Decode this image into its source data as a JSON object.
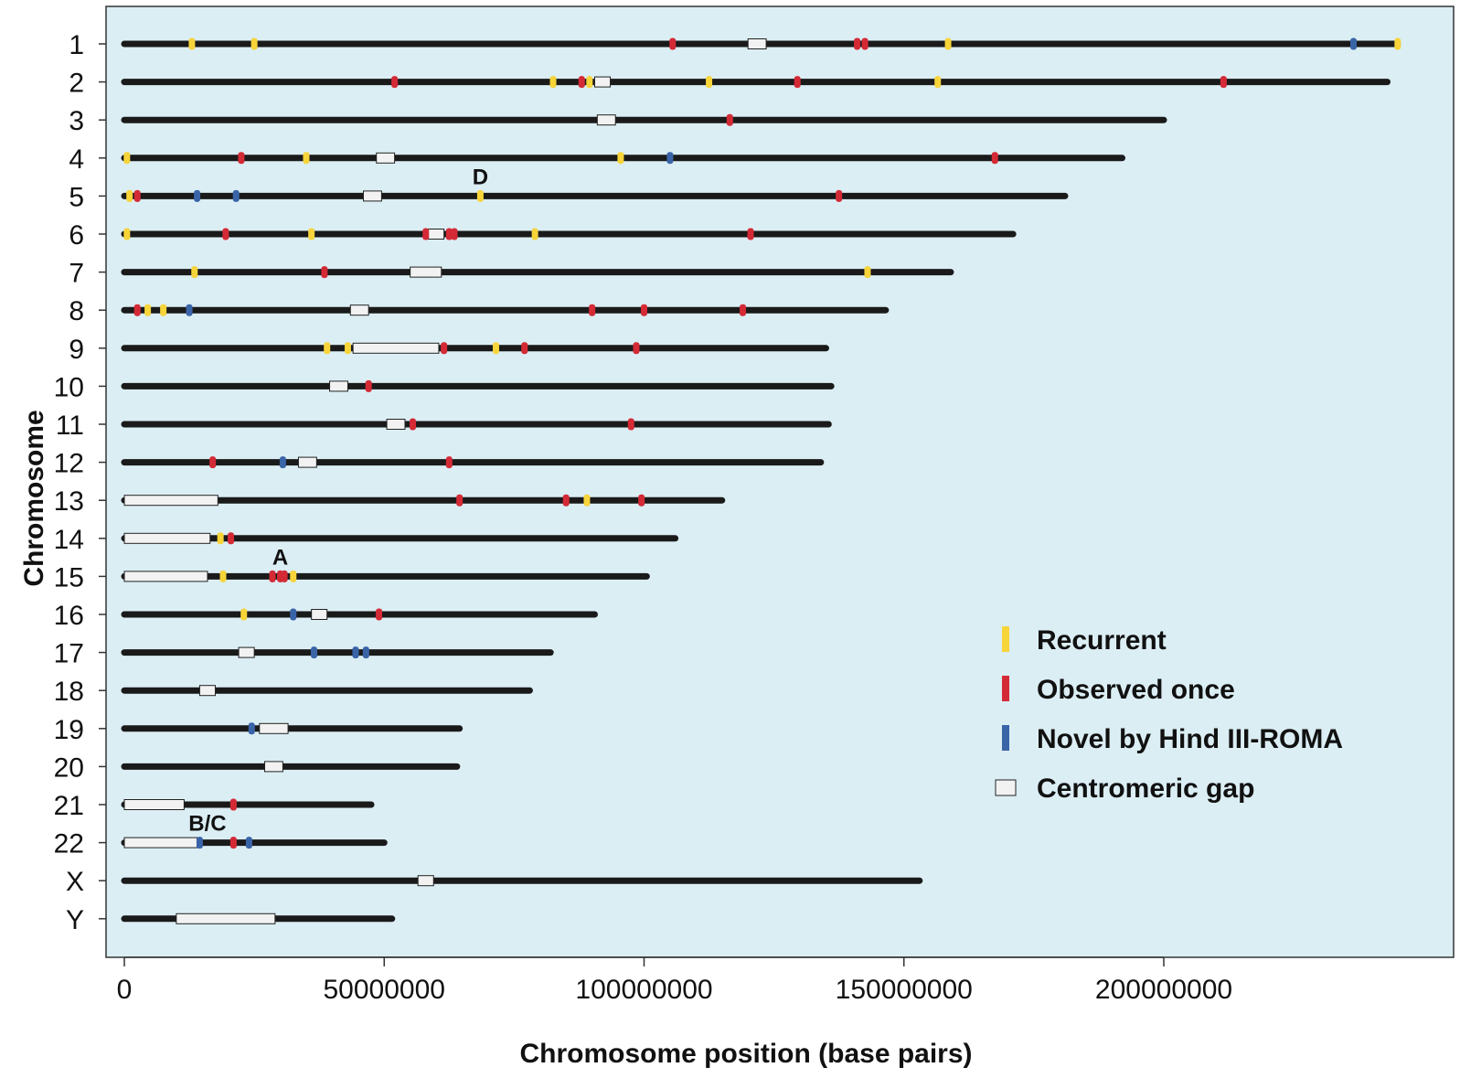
{
  "chart_data": {
    "type": "chromosome_map",
    "xlabel": "Chromosome position (base pairs)",
    "ylabel": "Chromosome",
    "xlim": [
      -3000000,
      249000000
    ],
    "xticks": [
      0,
      50000000,
      100000000,
      150000000,
      200000000
    ],
    "xtick_labels": [
      "0",
      "50000000",
      "100000000",
      "150000000",
      "200000000"
    ],
    "grid": false,
    "legend_position": "right",
    "colors": {
      "background": "#dbeef4",
      "chromosome": "#1a1a1a",
      "Recurrent": "#f7d43a",
      "Observed once": "#d42a36",
      "Novel by Hind III-ROMA": "#3a64a8",
      "centromere_fill": "#f2f2f2"
    },
    "legend": [
      {
        "label": "Recurrent",
        "kind": "mark"
      },
      {
        "label": "Observed once",
        "kind": "mark"
      },
      {
        "label": "Novel by Hind III-ROMA",
        "kind": "mark"
      },
      {
        "label": "Centromeric gap",
        "kind": "gap"
      }
    ],
    "chromosomes": [
      {
        "name": "1",
        "length": 245000000,
        "gap": [
          120000000,
          123500000
        ],
        "marks": [
          [
            13000000,
            "Recurrent"
          ],
          [
            25000000,
            "Recurrent"
          ],
          [
            105500000,
            "Observed once"
          ],
          [
            141000000,
            "Observed once"
          ],
          [
            142500000,
            "Observed once"
          ],
          [
            158500000,
            "Recurrent"
          ],
          [
            236500000,
            "Novel by Hind III-ROMA"
          ],
          [
            245000000,
            "Recurrent"
          ]
        ]
      },
      {
        "name": "2",
        "length": 243000000,
        "gap": [
          90500000,
          93500000
        ],
        "marks": [
          [
            52000000,
            "Observed once"
          ],
          [
            82500000,
            "Recurrent"
          ],
          [
            88000000,
            "Observed once"
          ],
          [
            89500000,
            "Recurrent"
          ],
          [
            112500000,
            "Recurrent"
          ],
          [
            129500000,
            "Observed once"
          ],
          [
            156500000,
            "Recurrent"
          ],
          [
            211500000,
            "Observed once"
          ]
        ]
      },
      {
        "name": "3",
        "length": 200000000,
        "gap": [
          91000000,
          94500000
        ],
        "marks": [
          [
            116500000,
            "Observed once"
          ]
        ]
      },
      {
        "name": "4",
        "length": 192000000,
        "gap": [
          48500000,
          52000000
        ],
        "marks": [
          [
            500000,
            "Recurrent"
          ],
          [
            22500000,
            "Observed once"
          ],
          [
            35000000,
            "Recurrent"
          ],
          [
            95500000,
            "Recurrent"
          ],
          [
            105000000,
            "Novel by Hind III-ROMA"
          ],
          [
            167500000,
            "Observed once"
          ]
        ]
      },
      {
        "name": "5",
        "length": 181000000,
        "gap": [
          46000000,
          49500000
        ],
        "marks": [
          [
            1000000,
            "Recurrent"
          ],
          [
            2500000,
            "Observed once"
          ],
          [
            14000000,
            "Novel by Hind III-ROMA"
          ],
          [
            21500000,
            "Novel by Hind III-ROMA"
          ],
          [
            68500000,
            "Recurrent"
          ],
          [
            137500000,
            "Observed once"
          ]
        ]
      },
      {
        "name": "6",
        "length": 171000000,
        "gap": [
          58500000,
          61500000
        ],
        "marks": [
          [
            500000,
            "Recurrent"
          ],
          [
            19500000,
            "Observed once"
          ],
          [
            36000000,
            "Recurrent"
          ],
          [
            58000000,
            "Observed once"
          ],
          [
            62500000,
            "Observed once"
          ],
          [
            63500000,
            "Observed once"
          ],
          [
            79000000,
            "Recurrent"
          ],
          [
            120500000,
            "Observed once"
          ]
        ]
      },
      {
        "name": "7",
        "length": 159000000,
        "gap": [
          55000000,
          61000000
        ],
        "marks": [
          [
            13500000,
            "Recurrent"
          ],
          [
            38500000,
            "Observed once"
          ],
          [
            143000000,
            "Recurrent"
          ]
        ]
      },
      {
        "name": "8",
        "length": 146500000,
        "gap": [
          43500000,
          47000000
        ],
        "marks": [
          [
            2500000,
            "Observed once"
          ],
          [
            4500000,
            "Recurrent"
          ],
          [
            7500000,
            "Recurrent"
          ],
          [
            12500000,
            "Novel by Hind III-ROMA"
          ],
          [
            90000000,
            "Observed once"
          ],
          [
            100000000,
            "Observed once"
          ],
          [
            119000000,
            "Observed once"
          ]
        ]
      },
      {
        "name": "9",
        "length": 135000000,
        "gap": [
          44000000,
          60500000
        ],
        "marks": [
          [
            39000000,
            "Recurrent"
          ],
          [
            43000000,
            "Recurrent"
          ],
          [
            61500000,
            "Observed once"
          ],
          [
            71500000,
            "Recurrent"
          ],
          [
            77000000,
            "Observed once"
          ],
          [
            98500000,
            "Observed once"
          ]
        ]
      },
      {
        "name": "10",
        "length": 136000000,
        "gap": [
          39500000,
          43000000
        ],
        "marks": [
          [
            47000000,
            "Observed once"
          ]
        ]
      },
      {
        "name": "11",
        "length": 135500000,
        "gap": [
          50500000,
          54000000
        ],
        "marks": [
          [
            55500000,
            "Observed once"
          ],
          [
            97500000,
            "Observed once"
          ]
        ]
      },
      {
        "name": "12",
        "length": 134000000,
        "gap": [
          33500000,
          37000000
        ],
        "marks": [
          [
            17000000,
            "Observed once"
          ],
          [
            30500000,
            "Novel by Hind III-ROMA"
          ],
          [
            62500000,
            "Observed once"
          ]
        ]
      },
      {
        "name": "13",
        "length": 115000000,
        "gap": [
          0,
          18000000
        ],
        "marks": [
          [
            64500000,
            "Observed once"
          ],
          [
            85000000,
            "Observed once"
          ],
          [
            89000000,
            "Recurrent"
          ],
          [
            99500000,
            "Observed once"
          ]
        ]
      },
      {
        "name": "14",
        "length": 106000000,
        "gap": [
          0,
          16500000
        ],
        "marks": [
          [
            18500000,
            "Recurrent"
          ],
          [
            20500000,
            "Observed once"
          ]
        ]
      },
      {
        "name": "15",
        "length": 100500000,
        "gap": [
          0,
          16000000
        ],
        "marks": [
          [
            19000000,
            "Recurrent"
          ],
          [
            28500000,
            "Observed once"
          ],
          [
            30000000,
            "Observed once"
          ],
          [
            30800000,
            "Observed once"
          ],
          [
            32500000,
            "Recurrent"
          ]
        ]
      },
      {
        "name": "16",
        "length": 90500000,
        "gap": [
          36000000,
          39000000
        ],
        "marks": [
          [
            23000000,
            "Recurrent"
          ],
          [
            32500000,
            "Novel by Hind III-ROMA"
          ],
          [
            49000000,
            "Observed once"
          ]
        ]
      },
      {
        "name": "17",
        "length": 82000000,
        "gap": [
          22000000,
          25000000
        ],
        "marks": [
          [
            36500000,
            "Novel by Hind III-ROMA"
          ],
          [
            44500000,
            "Novel by Hind III-ROMA"
          ],
          [
            46500000,
            "Novel by Hind III-ROMA"
          ]
        ]
      },
      {
        "name": "18",
        "length": 78000000,
        "gap": [
          14500000,
          17500000
        ],
        "marks": []
      },
      {
        "name": "19",
        "length": 64500000,
        "gap": [
          26000000,
          31500000
        ],
        "marks": [
          [
            24500000,
            "Novel by Hind III-ROMA"
          ]
        ]
      },
      {
        "name": "20",
        "length": 64000000,
        "gap": [
          27000000,
          30500000
        ],
        "marks": []
      },
      {
        "name": "21",
        "length": 47500000,
        "gap": [
          0,
          11500000
        ],
        "marks": [
          [
            21000000,
            "Observed once"
          ]
        ]
      },
      {
        "name": "22",
        "length": 50000000,
        "gap": [
          0,
          14000000
        ],
        "marks": [
          [
            14500000,
            "Novel by Hind III-ROMA"
          ],
          [
            21000000,
            "Observed once"
          ],
          [
            24000000,
            "Novel by Hind III-ROMA"
          ]
        ]
      },
      {
        "name": "X",
        "length": 153000000,
        "gap": [
          56500000,
          59500000
        ],
        "marks": []
      },
      {
        "name": "Y",
        "length": 51500000,
        "gap": [
          10000000,
          29000000
        ],
        "marks": []
      }
    ],
    "annotations": [
      {
        "text": "D",
        "chromosome": "5",
        "position": 68500000
      },
      {
        "text": "A",
        "chromosome": "15",
        "position": 30000000
      },
      {
        "text": "B/C",
        "chromosome": "22",
        "position": 16000000
      }
    ]
  }
}
